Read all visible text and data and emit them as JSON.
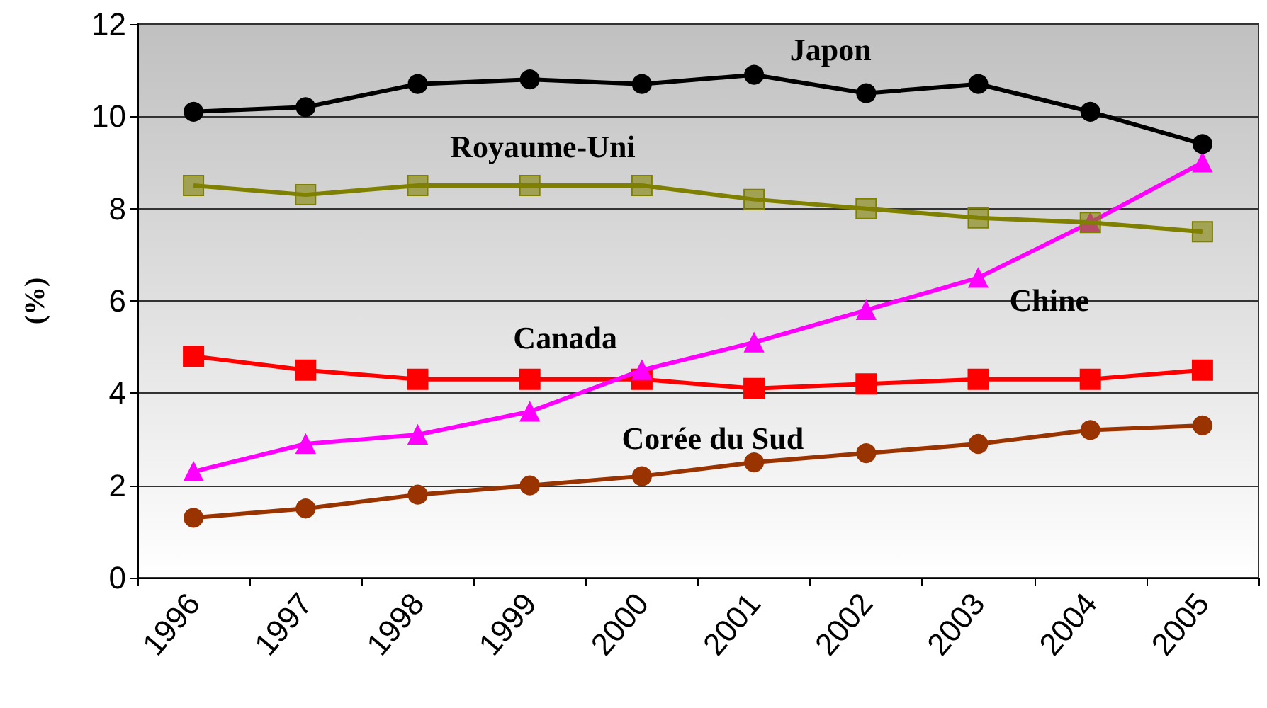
{
  "chart_data": {
    "type": "line",
    "ylabel": "(%)",
    "categories": [
      "1996",
      "1997",
      "1998",
      "1999",
      "2000",
      "2001",
      "2002",
      "2003",
      "2004",
      "2005"
    ],
    "series": [
      {
        "name": "Japon",
        "color": "#000000",
        "marker": "circle",
        "values": [
          10.1,
          10.2,
          10.7,
          10.8,
          10.7,
          10.9,
          10.5,
          10.7,
          10.1,
          9.4
        ]
      },
      {
        "name": "Royaume-Uni",
        "color": "#808000",
        "marker": "square",
        "values": [
          8.5,
          8.3,
          8.5,
          8.5,
          8.5,
          8.2,
          8.0,
          7.8,
          7.7,
          7.5
        ]
      },
      {
        "name": "Chine",
        "color": "#ff00ff",
        "marker": "triangle",
        "values": [
          2.3,
          2.9,
          3.1,
          3.6,
          4.5,
          5.1,
          5.8,
          6.5,
          7.7,
          9.0
        ]
      },
      {
        "name": "Canada",
        "color": "#ff0000",
        "marker": "square",
        "values": [
          4.8,
          4.5,
          4.3,
          4.3,
          4.3,
          4.1,
          4.2,
          4.3,
          4.3,
          4.5
        ]
      },
      {
        "name": "Corée du Sud",
        "color": "#993300",
        "marker": "circle",
        "values": [
          1.3,
          1.5,
          1.8,
          2.0,
          2.2,
          2.5,
          2.7,
          2.9,
          3.2,
          3.3
        ]
      }
    ],
    "ylim": [
      0,
      12
    ],
    "yticks": [
      0,
      2,
      4,
      6,
      8,
      10,
      12
    ],
    "grid": "y",
    "legend": false,
    "line_style": "solid"
  }
}
